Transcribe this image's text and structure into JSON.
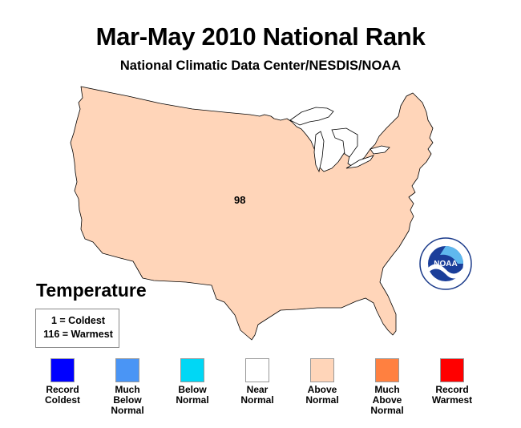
{
  "title": "Mar-May 2010 National Rank",
  "subtitle": "National Climatic Data Center/NESDIS/NOAA",
  "map": {
    "region_fill": "#ffd5b9",
    "rank_value": "98",
    "category": "Above Normal"
  },
  "legend": {
    "title": "Temperature",
    "key_line1": "1 = Coldest",
    "key_line2": "116 = Warmest",
    "categories": [
      {
        "label": "Record\nColdest",
        "color": "#0000ff"
      },
      {
        "label": "Much\nBelow\nNormal",
        "color": "#4a95f5"
      },
      {
        "label": "Below\nNormal",
        "color": "#00d7f5"
      },
      {
        "label": "Near\nNormal",
        "color": "#ffffff"
      },
      {
        "label": "Above\nNormal",
        "color": "#ffd5b9"
      },
      {
        "label": "Much\nAbove\nNormal",
        "color": "#ff8040"
      },
      {
        "label": "Record\nWarmest",
        "color": "#ff0000"
      }
    ]
  },
  "logo": {
    "name": "noaa-logo",
    "text": "NOAA"
  }
}
